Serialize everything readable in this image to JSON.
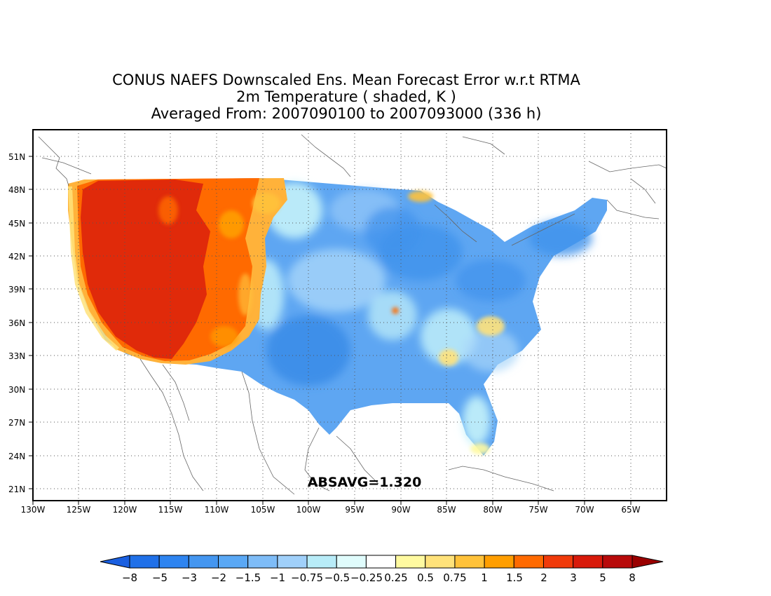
{
  "title": {
    "line1": "CONUS NAEFS Downscaled Ens. Mean Forecast Error w.r.t RTMA",
    "line2": "2m Temperature ( shaded, K )",
    "line3": "Averaged From: 2007090100 to 2007093000 (336 h)"
  },
  "annotation": "ABSAVG=1.320",
  "axes": {
    "lon_labels": [
      "130W",
      "125W",
      "120W",
      "115W",
      "110W",
      "105W",
      "100W",
      "95W",
      "90W",
      "85W",
      "80W",
      "75W",
      "70W",
      "65W"
    ],
    "lat_labels": [
      "21N",
      "24N",
      "27N",
      "30N",
      "33N",
      "36N",
      "39N",
      "42N",
      "45N",
      "48N",
      "51N"
    ]
  },
  "colorbar": {
    "labels": [
      "−8",
      "−5",
      "−3",
      "−2",
      "−1.5",
      "−1",
      "−0.75",
      "−0.5",
      "−0.25",
      "0.25",
      "0.5",
      "0.75",
      "1",
      "1.5",
      "2",
      "3",
      "5",
      "8"
    ],
    "colors": [
      "#1a5fe0",
      "#2070e8",
      "#2e84f0",
      "#4496f0",
      "#5aa8f5",
      "#7ebcf7",
      "#a0d0fa",
      "#b8ecf8",
      "#e0fcfc",
      "#ffffff",
      "#fffaa0",
      "#ffe27a",
      "#ffc23a",
      "#ff9e00",
      "#ff6a00",
      "#f03a0a",
      "#d81a0a",
      "#b80a0a",
      "#9a0000"
    ]
  },
  "map": {
    "warm_colors": {
      "hot": "#e02a0a",
      "orange": "#ff5a00",
      "amber": "#ff9e00",
      "yellow": "#ffe27a",
      "pale": "#fffaa0"
    },
    "cool_colors": {
      "mid": "#3e92ec",
      "light": "#6eb2f5",
      "pale": "#a8d6fa",
      "cyan": "#c4f2fa",
      "white": "#ffffff"
    }
  }
}
